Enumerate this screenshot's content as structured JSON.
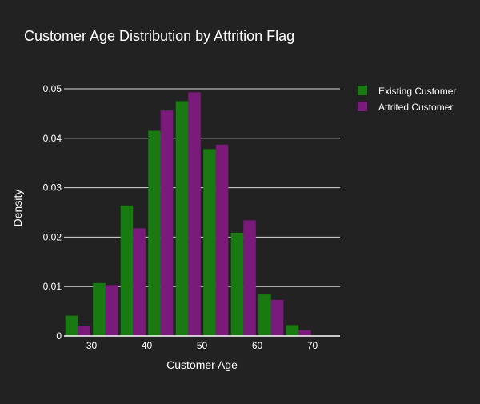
{
  "chart_data": {
    "type": "bar",
    "barmode": "group",
    "histnorm": "probability density",
    "title": "Customer Age Distribution by Attrition Flag",
    "xlabel": "Customer Age",
    "ylabel": "Density",
    "bin_size": 5,
    "x": [
      27.5,
      32.5,
      37.5,
      42.5,
      47.5,
      52.5,
      57.5,
      62.5,
      67.5
    ],
    "xlim": [
      25,
      75
    ],
    "ylim": [
      0,
      0.05
    ],
    "x_ticks": [
      30,
      40,
      50,
      60,
      70
    ],
    "x_tick_labels": [
      "30",
      "40",
      "50",
      "60",
      "70"
    ],
    "y_ticks": [
      0,
      0.01,
      0.02,
      0.03,
      0.04,
      0.05
    ],
    "y_tick_labels": [
      "0",
      "0.01",
      "0.02",
      "0.03",
      "0.04",
      "0.05"
    ],
    "grid": "horizontal",
    "legend_position": "top-right",
    "series": [
      {
        "name": "Existing Customer",
        "color": "#1a7a12",
        "values": [
          0.0041,
          0.0107,
          0.0264,
          0.0415,
          0.0475,
          0.0378,
          0.0209,
          0.0084,
          0.0022
        ]
      },
      {
        "name": "Attrited Customer",
        "color": "#7a1a7a",
        "values": [
          0.0021,
          0.0103,
          0.0218,
          0.0456,
          0.0493,
          0.0387,
          0.0234,
          0.0073,
          0.0012
        ]
      }
    ],
    "colors": {
      "background": "#222222",
      "text": "#ffffff",
      "grid": "#d9d9d9",
      "axis": "#ffffff"
    }
  }
}
